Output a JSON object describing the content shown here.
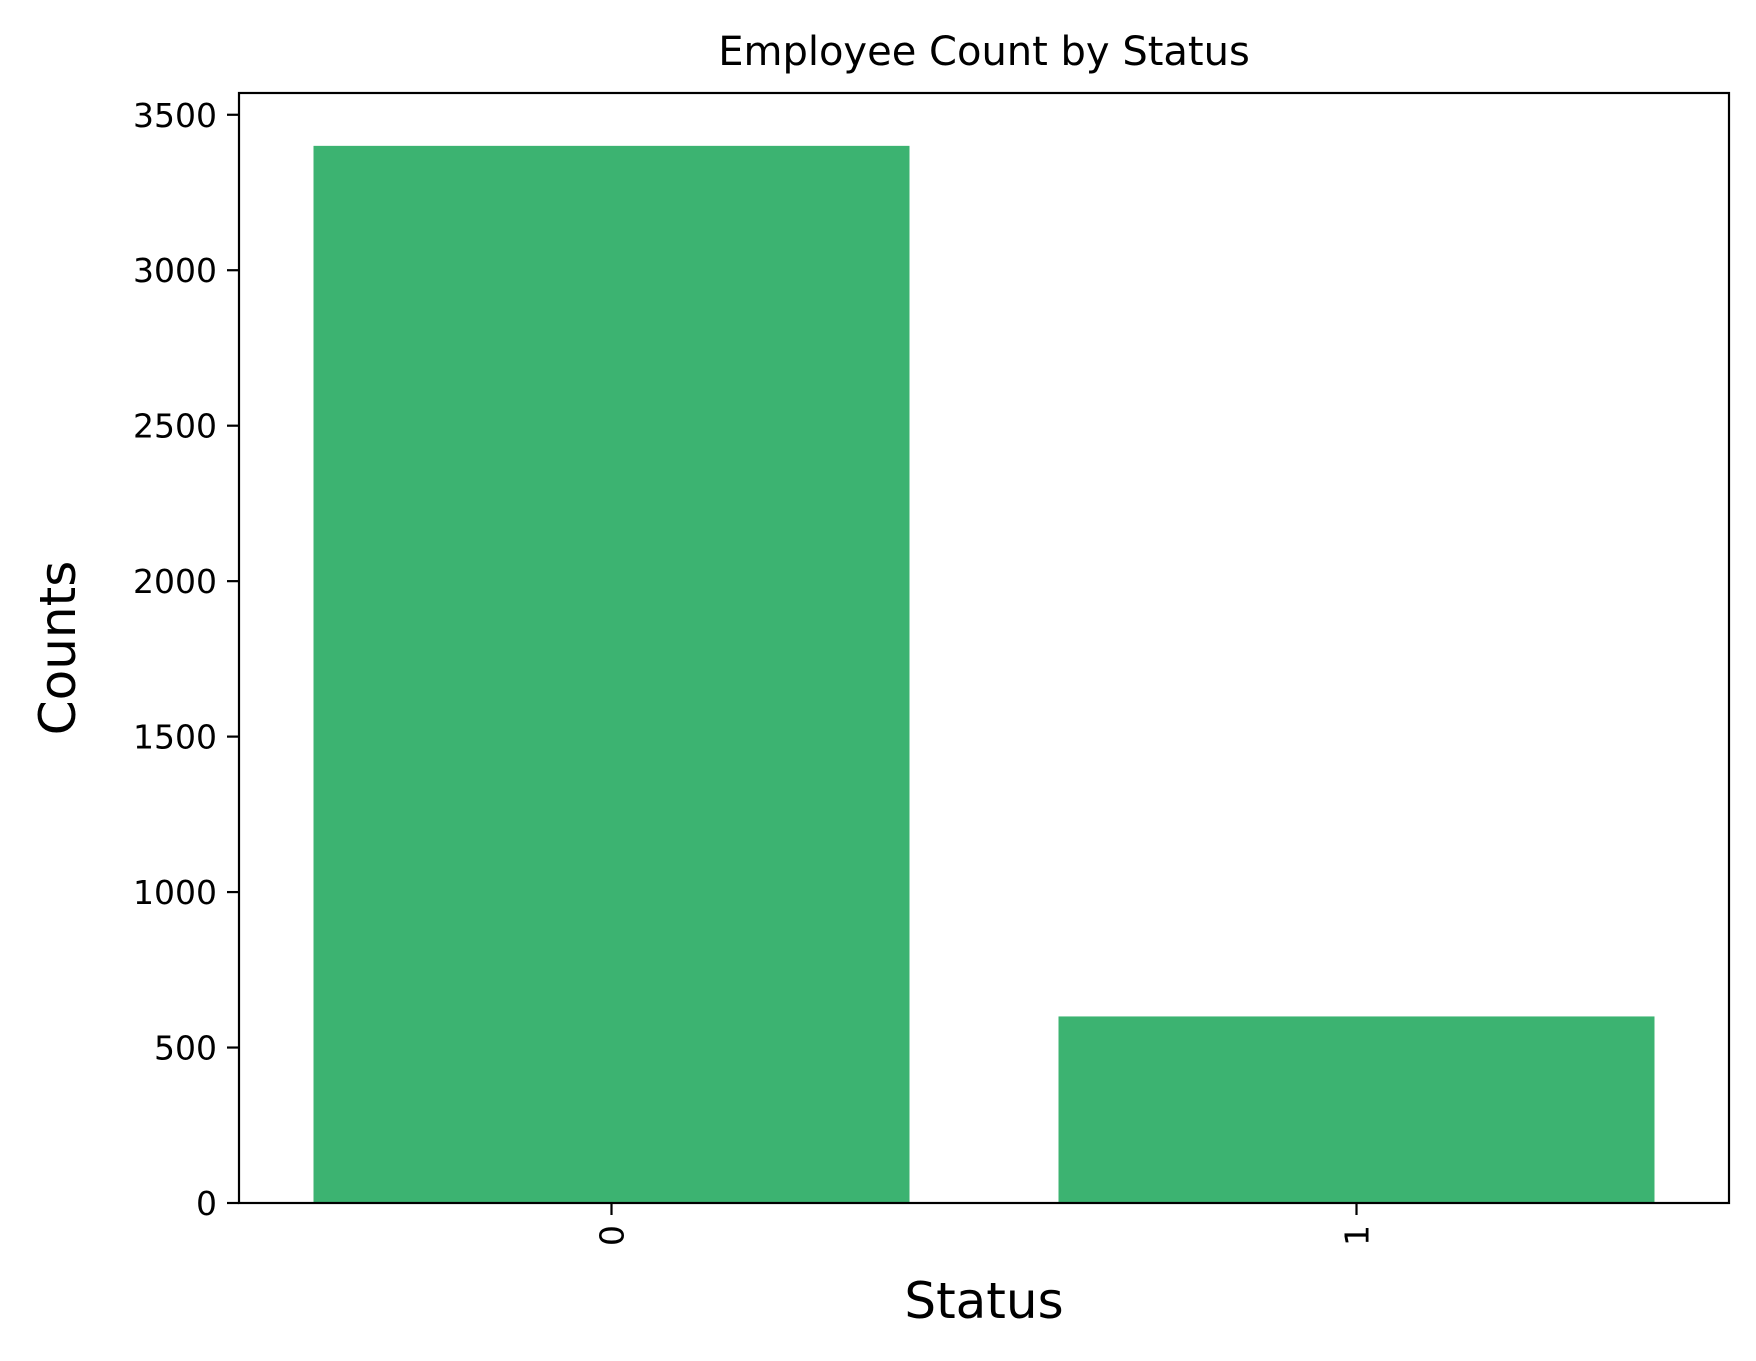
{
  "chart_data": {
    "type": "bar",
    "title": "Employee Count by Status",
    "xlabel": "Status",
    "ylabel": "Counts",
    "categories": [
      "0",
      "1"
    ],
    "values": [
      3400,
      600
    ],
    "ylim": [
      0,
      3570
    ],
    "y_ticks": [
      0,
      500,
      1000,
      1500,
      2000,
      2500,
      3000,
      3500
    ],
    "x_tick_rotation": 90,
    "grid": false,
    "bar_color": "#3cb371",
    "axis_color": "#000000",
    "background": "#ffffff"
  }
}
